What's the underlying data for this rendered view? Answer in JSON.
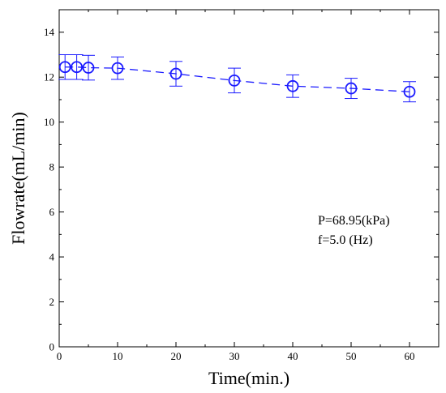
{
  "chart_data": {
    "type": "line",
    "title": "",
    "xlabel": "Time(min.)",
    "ylabel": "Flowrate(mL/min)",
    "xlim": [
      0,
      65
    ],
    "ylim": [
      0,
      15
    ],
    "x_ticks": [
      0,
      10,
      20,
      30,
      40,
      50,
      60
    ],
    "y_ticks": [
      0,
      2,
      4,
      6,
      8,
      10,
      12,
      14
    ],
    "x_tick_labels": [
      "0",
      "10",
      "20",
      "30",
      "40",
      "50",
      "60"
    ],
    "y_tick_labels": [
      "0",
      "2",
      "4",
      "6",
      "8",
      "10",
      "12",
      "14"
    ],
    "grid": false,
    "line_style": "dashed",
    "marker": "open-circle",
    "color": "#1a1aff",
    "series": [
      {
        "x": [
          1,
          3,
          5,
          10,
          20,
          30,
          40,
          50,
          60
        ],
        "y": [
          12.45,
          12.45,
          12.42,
          12.4,
          12.15,
          11.85,
          11.6,
          11.5,
          11.35
        ],
        "error": [
          0.55,
          0.55,
          0.55,
          0.5,
          0.55,
          0.55,
          0.5,
          0.45,
          0.45
        ]
      }
    ],
    "annotations": [
      "P=68.95(kPa)",
      "f=5.0 (Hz)"
    ]
  }
}
